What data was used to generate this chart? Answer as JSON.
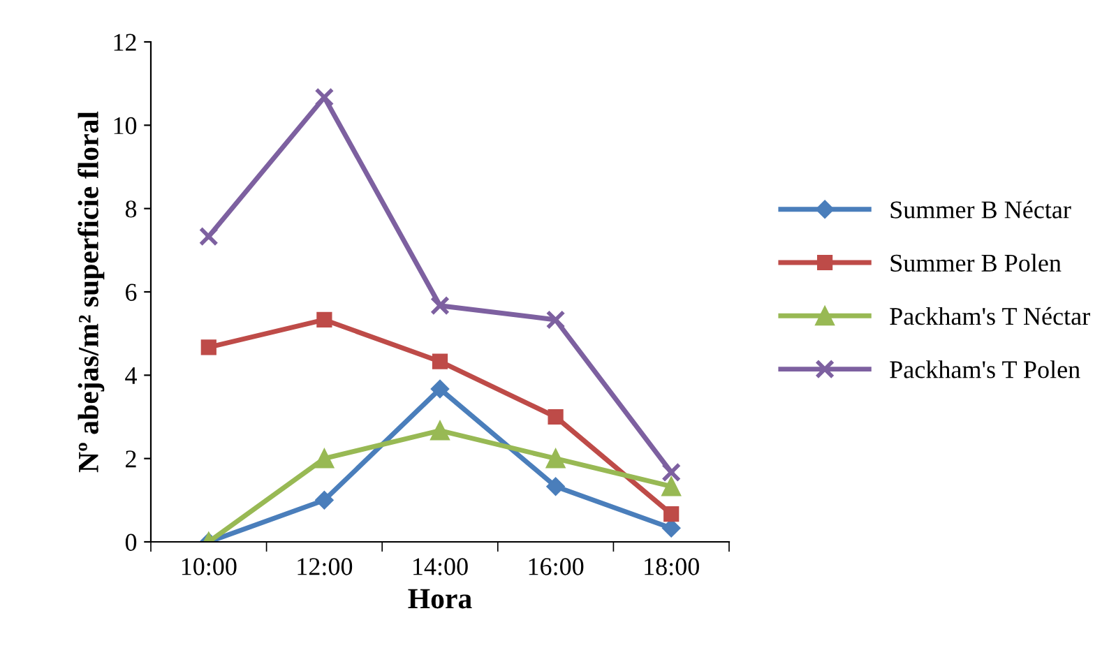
{
  "chart_data": {
    "type": "line",
    "xlabel": "Hora",
    "ylabel": "Nº abejas/m² superficie floral",
    "categories": [
      "10:00",
      "12:00",
      "14:00",
      "16:00",
      "18:00"
    ],
    "ylim": [
      0,
      12
    ],
    "yticks": [
      0,
      2,
      4,
      6,
      8,
      10,
      12
    ],
    "grid": false,
    "legend": "right",
    "line_style": "solid",
    "series": [
      {
        "name": "Summer B Néctar",
        "color": "#4a7ebb",
        "marker": "diamond",
        "values": [
          0,
          1,
          3.67,
          1.33,
          0.33
        ]
      },
      {
        "name": "Summer B Polen",
        "color": "#be4b48",
        "marker": "square",
        "values": [
          4.67,
          5.33,
          4.33,
          3,
          0.67
        ]
      },
      {
        "name": "Packham's T Néctar",
        "color": "#98b954",
        "marker": "triangle",
        "values": [
          0,
          2,
          2.67,
          2,
          1.33
        ]
      },
      {
        "name": "Packham's T Polen",
        "color": "#7d60a0",
        "marker": "cross",
        "values": [
          7.33,
          10.67,
          5.67,
          5.33,
          1.67
        ]
      }
    ]
  }
}
